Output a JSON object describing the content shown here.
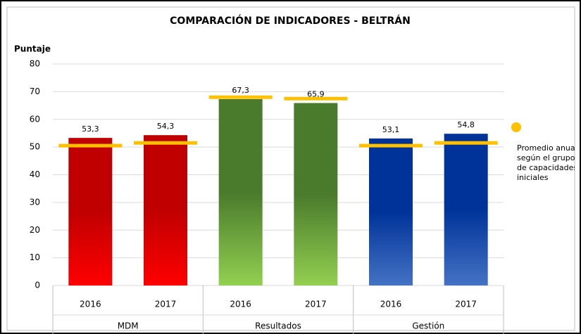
{
  "chart_data": {
    "type": "bar",
    "title": "COMPARACIÓN DE INDICADORES - BELTRÁN",
    "y_label": "Puntaje",
    "categories": [
      "2016",
      "2017",
      "2016",
      "2017",
      "2016",
      "2017"
    ],
    "groups": [
      "MDM",
      "Resultados",
      "Gestión"
    ],
    "series": [
      {
        "values": [
          53.3,
          54.3,
          67.3,
          65.9,
          53.1,
          54.8
        ],
        "value_labels": [
          "53,3",
          "54,3",
          "67,3",
          "65,9",
          "53,1",
          "54,8"
        ],
        "colors": [
          [
            "#c00000",
            "#ff0000"
          ],
          [
            "#c00000",
            "#ff0000"
          ],
          [
            "#4a7a2c",
            "#92d050"
          ],
          [
            "#4a7a2c",
            "#92d050"
          ],
          [
            "#003399",
            "#4472c4"
          ],
          [
            "#003399",
            "#4472c4"
          ]
        ]
      },
      {
        "name": "Promedio anual según el grupo de capacidades iniciales",
        "color": "#ffc000",
        "values": [
          50.5,
          51.5,
          68,
          67.5,
          50.5,
          51.5
        ]
      }
    ],
    "ylim": [
      0,
      80
    ],
    "yticks": [
      0,
      10,
      20,
      30,
      40,
      50,
      60,
      70,
      80
    ],
    "grid": true
  }
}
